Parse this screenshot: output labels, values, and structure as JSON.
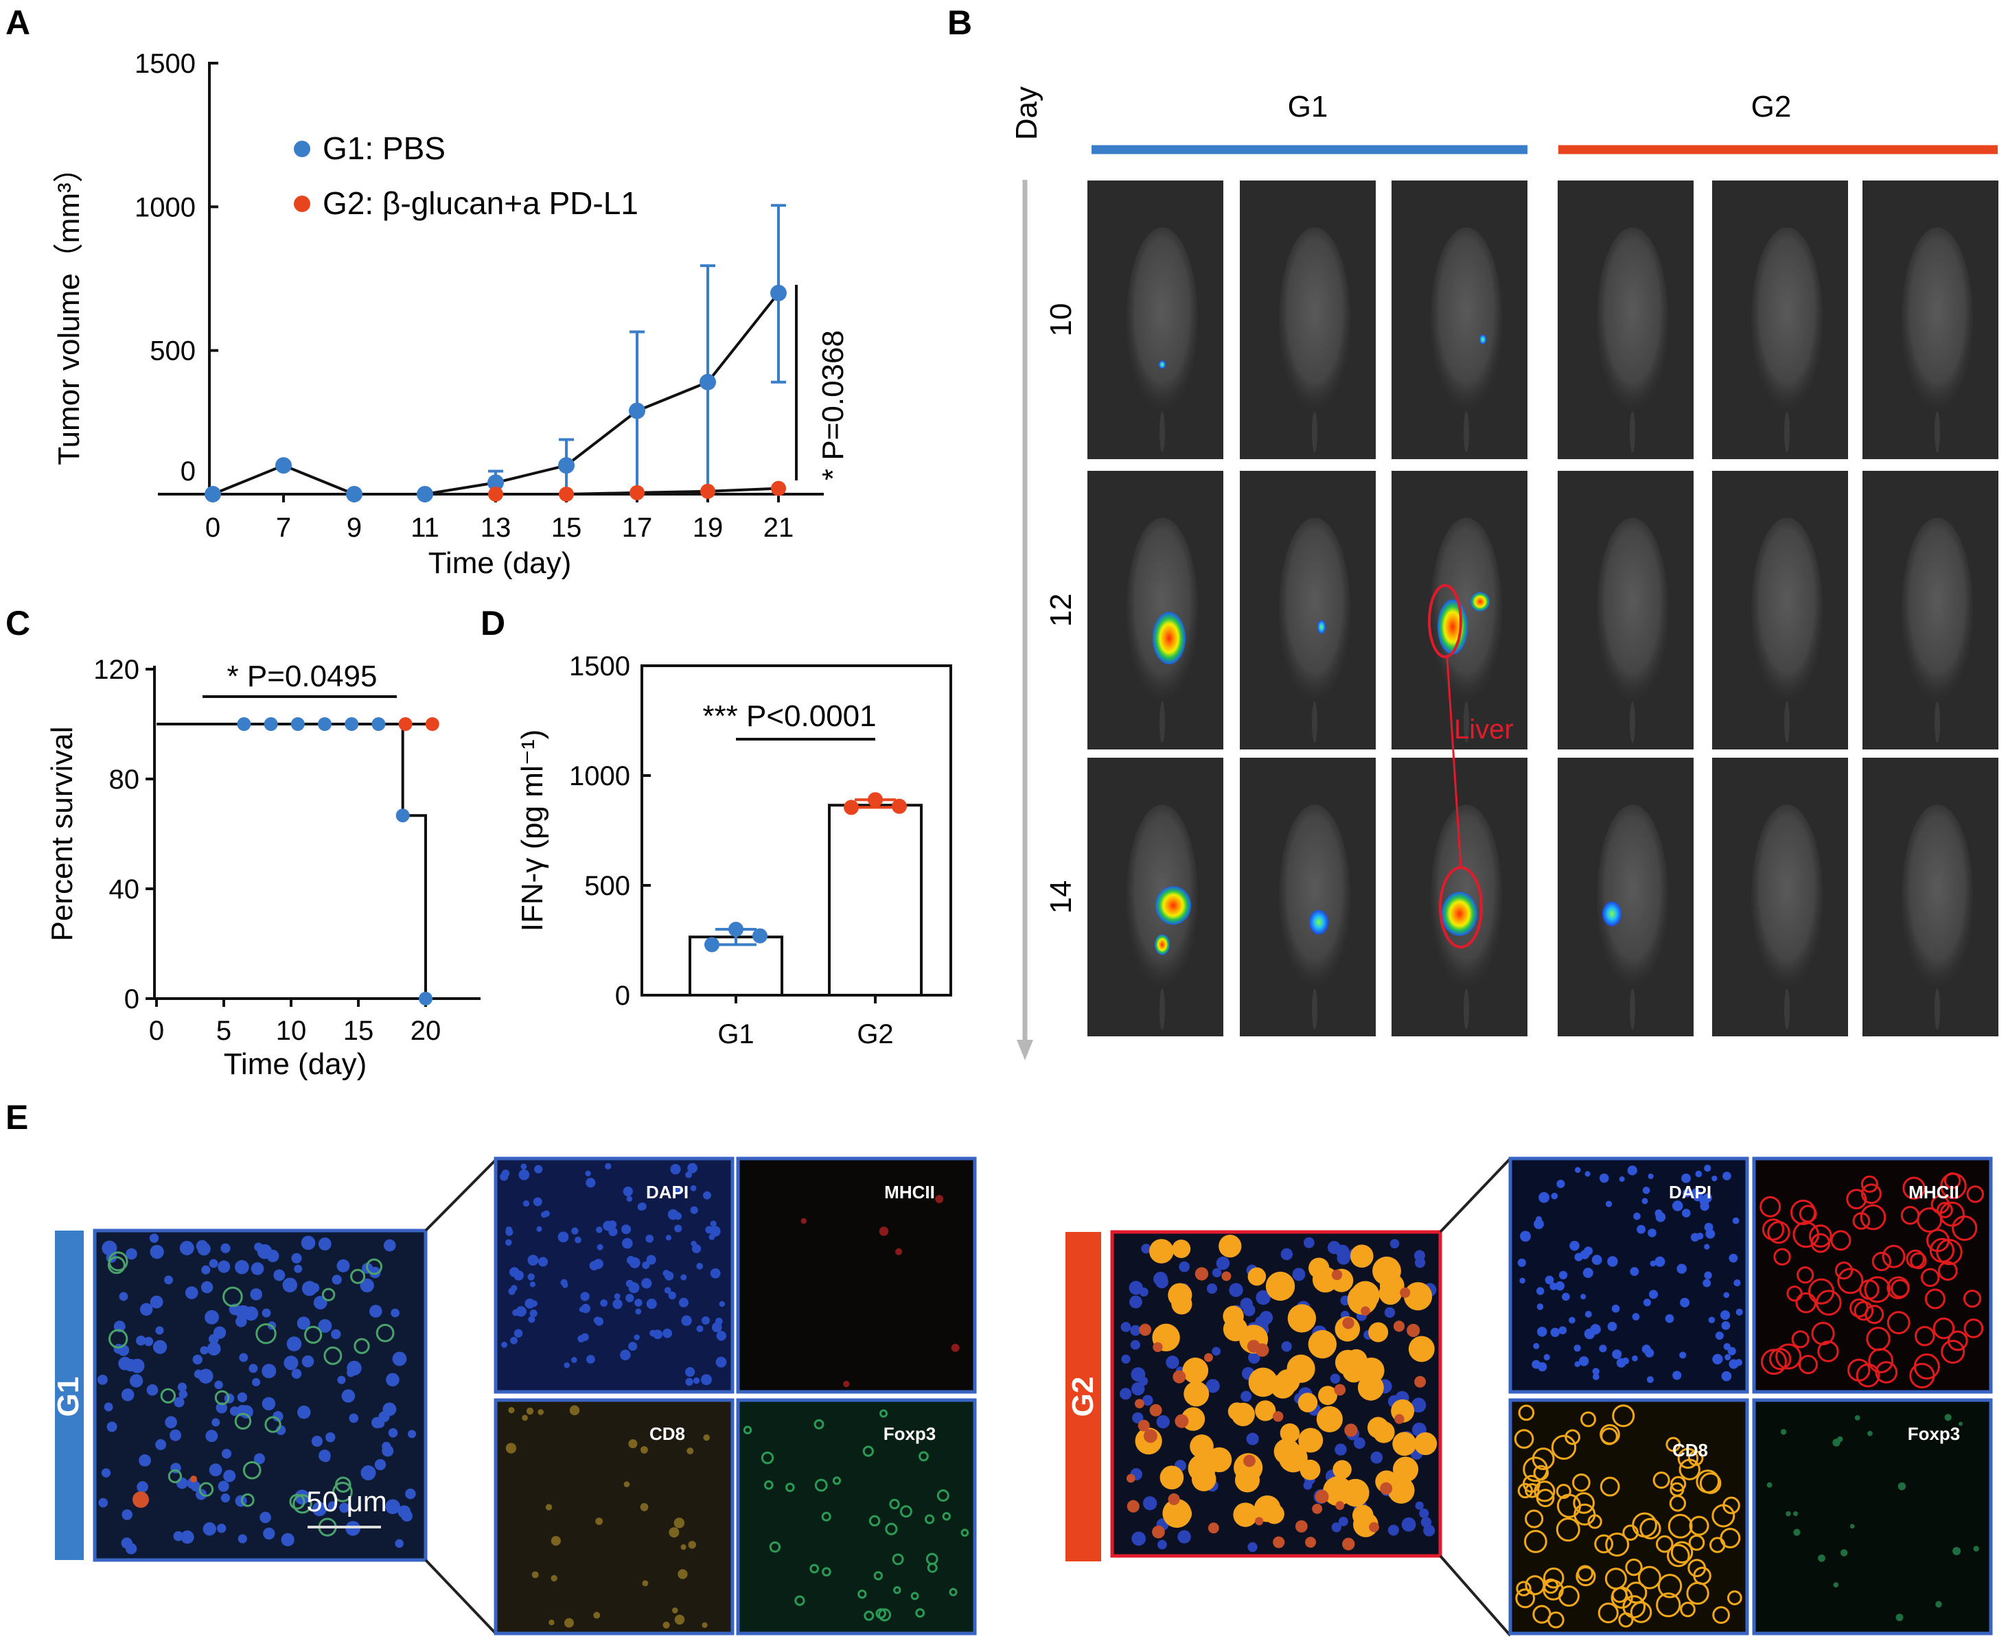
{
  "panels": {
    "A": "A",
    "B": "B",
    "C": "C",
    "D": "D",
    "E": "E"
  },
  "colors": {
    "G1": "#3A7DC9",
    "G2": "#E8451E"
  },
  "chart_data": [
    {
      "id": "A",
      "type": "line",
      "xlabel": "Time (day)",
      "ylabel": "Tumor volume（mm³）",
      "ylim": [
        0,
        1500
      ],
      "yticks": [
        "1500",
        "1000",
        "500",
        "0"
      ],
      "categories": [
        "0",
        "7",
        "9",
        "11",
        "13",
        "15",
        "17",
        "19",
        "21"
      ],
      "series": [
        {
          "name": "G1: PBS",
          "values": [
            0,
            100,
            0,
            0,
            40,
            100,
            290,
            390,
            700
          ],
          "err_upper": [
            0,
            0,
            0,
            0,
            80,
            190,
            565,
            795,
            1005
          ],
          "err_lower": [
            0,
            0,
            0,
            0,
            0,
            0,
            0,
            0,
            390
          ]
        },
        {
          "name": "G2: β-glucan+a PD-L1",
          "values": [
            null,
            null,
            null,
            null,
            0,
            0,
            5,
            10,
            20
          ]
        }
      ],
      "annotation": "* P=0.0368"
    },
    {
      "id": "C",
      "type": "line",
      "xlabel": "Time (day)",
      "ylabel": "Percent survival",
      "xlim": [
        0,
        25
      ],
      "ylim": [
        0,
        120
      ],
      "xticks": [
        "0",
        "5",
        "10",
        "15",
        "20"
      ],
      "yticks": [
        "120",
        "80",
        "40",
        "0"
      ],
      "annotation": "* P=0.0495",
      "series": [
        {
          "name": "G1",
          "censor_x": [
            6.5,
            8.5,
            10.5,
            12.5,
            14.5,
            16.5
          ],
          "censor_y": 100,
          "steps": [
            [
              0,
              100
            ],
            [
              18.3,
              100
            ],
            [
              18.3,
              66.7
            ],
            [
              20,
              66.7
            ],
            [
              20,
              0
            ]
          ]
        },
        {
          "name": "G2",
          "censor_x": [
            18.5,
            20.5
          ],
          "censor_y": 100,
          "steps": [
            [
              0,
              100
            ],
            [
              20.5,
              100
            ]
          ]
        }
      ]
    },
    {
      "id": "D",
      "type": "bar",
      "ylabel": "IFN-γ (pg ml⁻¹)",
      "ylim": [
        0,
        1500
      ],
      "yticks": [
        "1500",
        "1000",
        "500",
        "0"
      ],
      "categories": [
        "G1",
        "G2"
      ],
      "values": [
        265,
        865
      ],
      "points": [
        [
          230,
          300,
          270
        ],
        [
          855,
          890,
          860
        ]
      ],
      "annotation": "*** P<0.0001"
    }
  ],
  "panelB": {
    "axis_label": "Day",
    "groups": [
      "G1",
      "G2"
    ],
    "days": [
      "10",
      "12",
      "14"
    ],
    "liver_label": "Liver"
  },
  "panelE": {
    "g1": {
      "label": "G1",
      "scale_bar": "50 μm",
      "channels": [
        "DAPI",
        "MHCII",
        "CD8",
        "Foxp3"
      ]
    },
    "g2": {
      "label": "G2",
      "channels": [
        "DAPI",
        "MHCII",
        "CD8",
        "Foxp3"
      ]
    }
  }
}
